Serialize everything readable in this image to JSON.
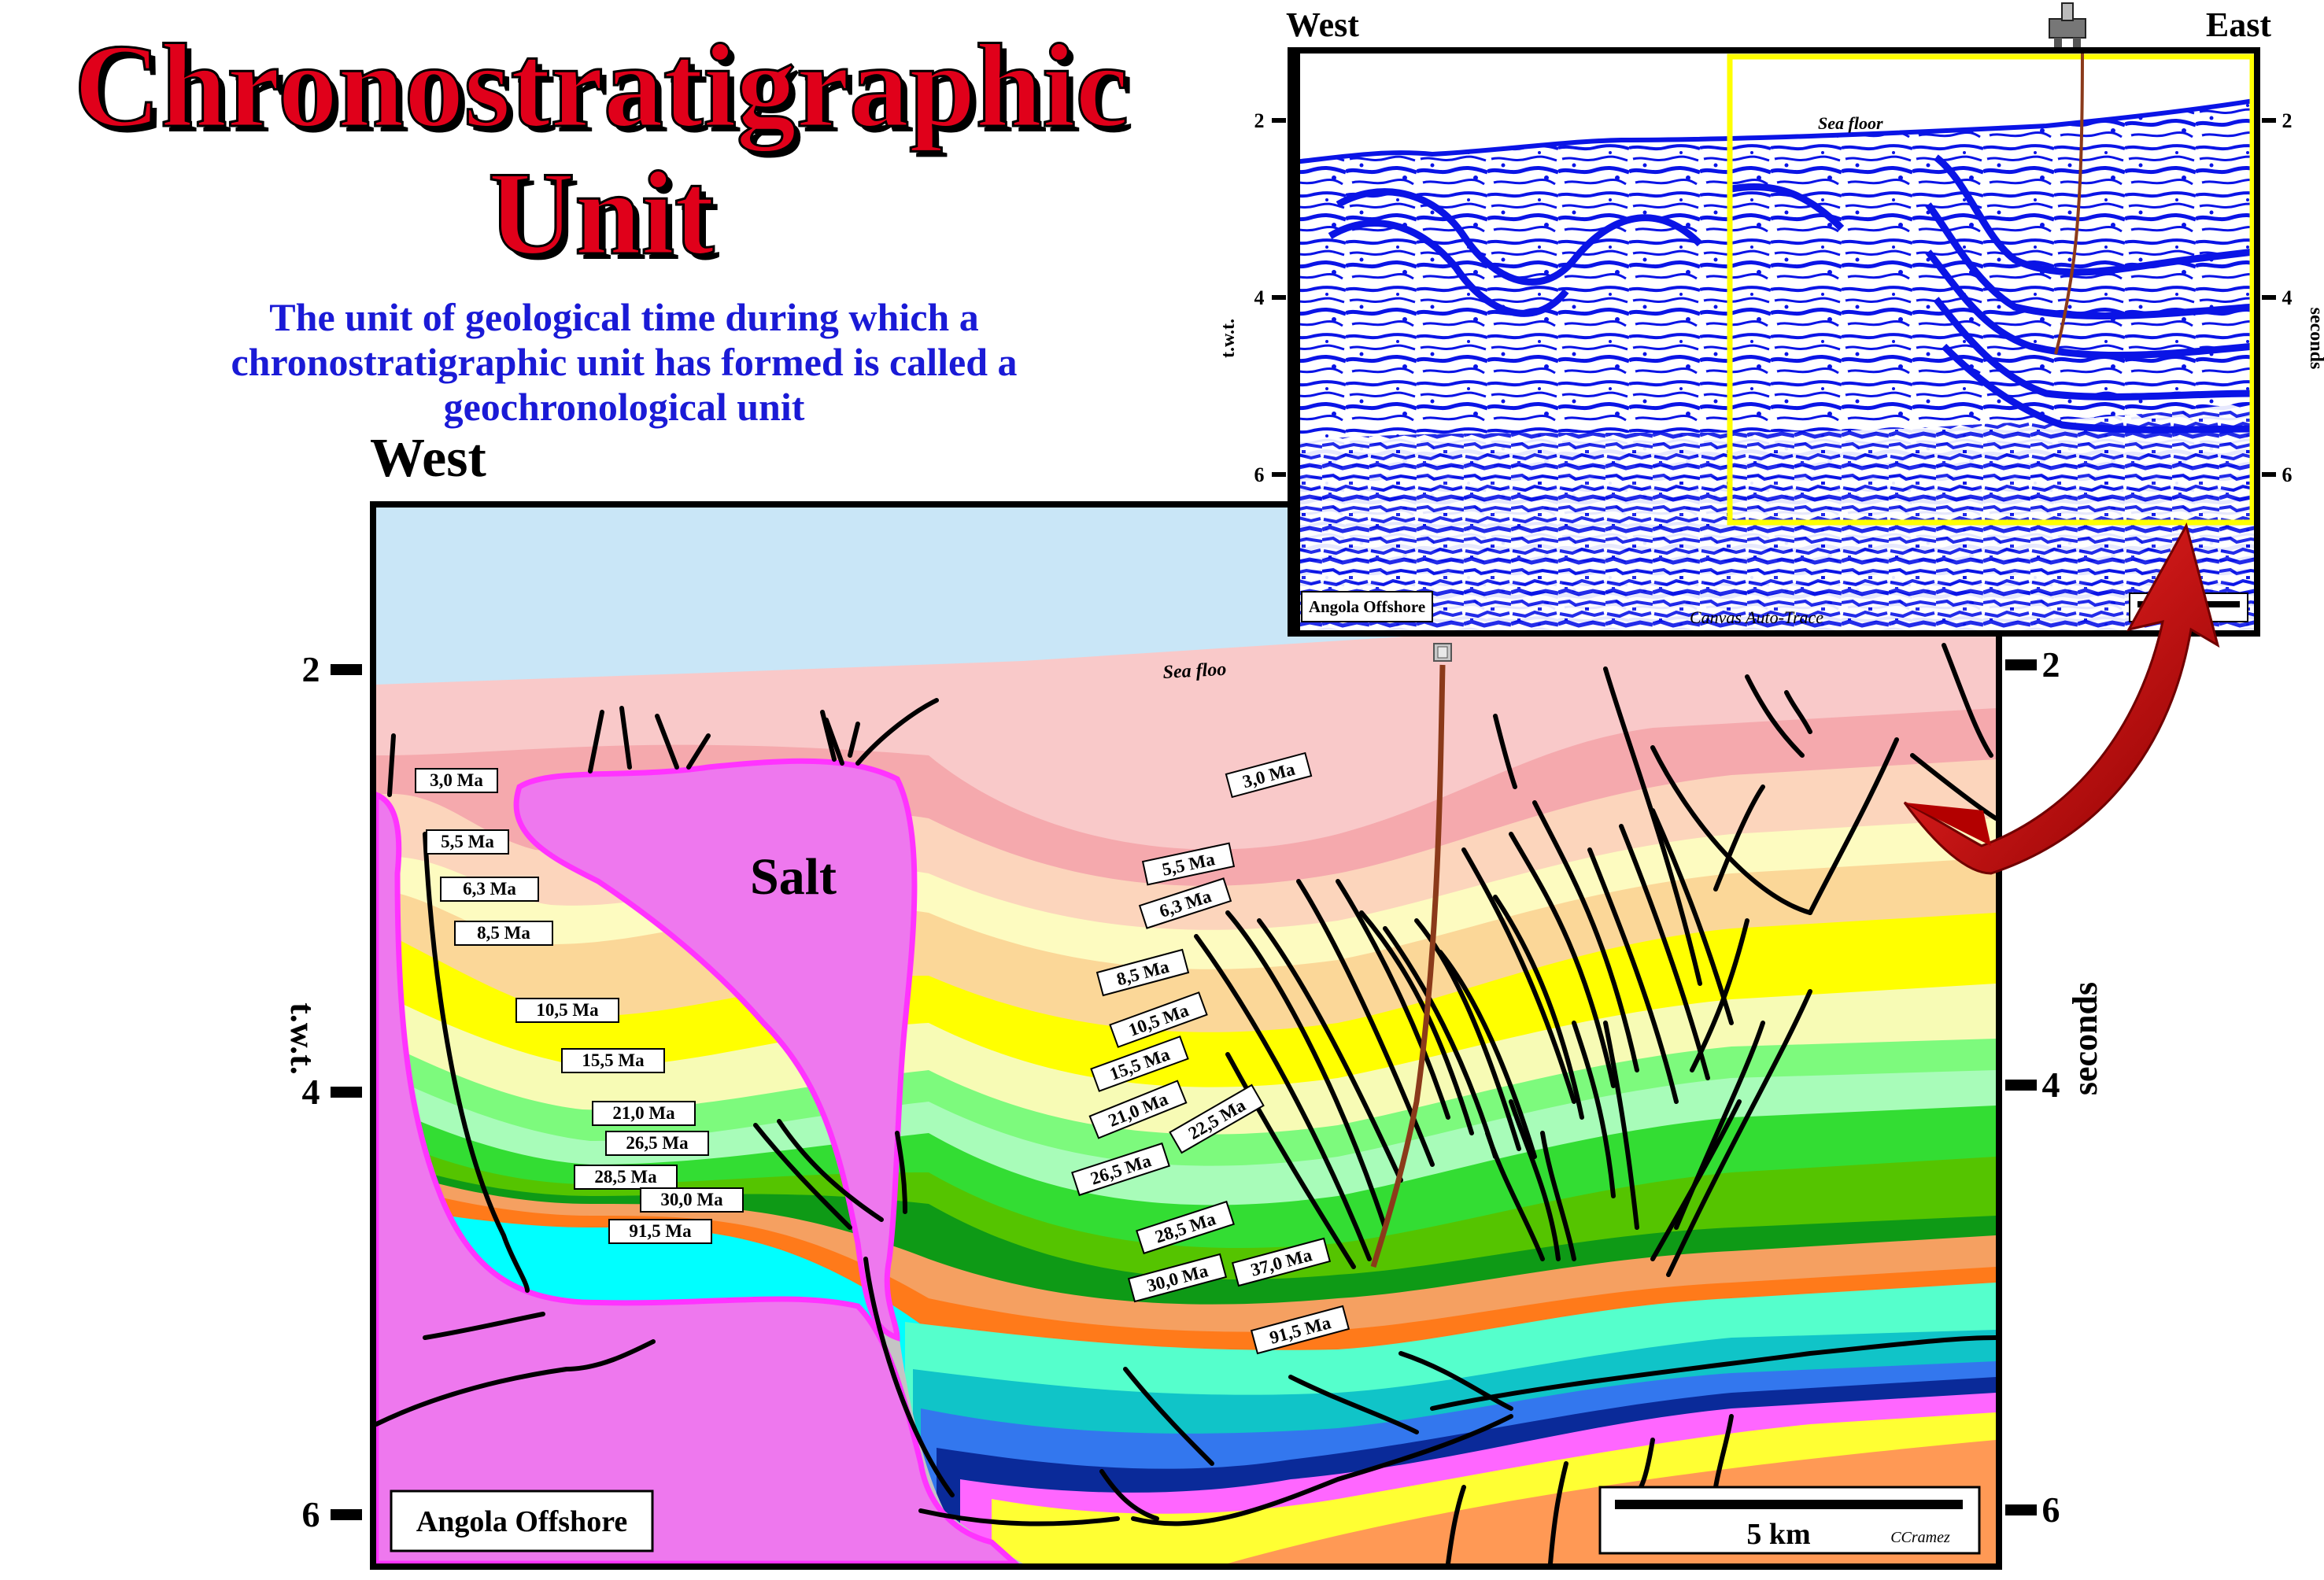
{
  "title": {
    "line1": "Chronostratigraphic",
    "line2": "Unit",
    "color": "#e0001a"
  },
  "subtitle": {
    "line1": "The unit of geological time during which a",
    "line2": "chronostratigraphic unit has formed is called a",
    "line3": "geochronological unit",
    "color": "#1a1ad6"
  },
  "main_section": {
    "west_label": "West",
    "left_axis_title": "t.w.t.",
    "right_axis_title": "seconds",
    "left_ticks": [
      "2",
      "4",
      "6"
    ],
    "right_ticks": [
      "2",
      "4",
      "6"
    ],
    "sea_floor_label": "Sea floo",
    "salt_label": "Salt",
    "location_label": "Angola Offshore",
    "scale_label": "5 km",
    "author_label": "CCramez",
    "west_ages": [
      "3,0 Ma",
      "5,5 Ma",
      "6,3 Ma",
      "8,5 Ma",
      "10,5 Ma",
      "15,5 Ma",
      "21,0 Ma",
      "26,5 Ma",
      "28,5 Ma",
      "30,0 Ma",
      "91,5 Ma"
    ],
    "east_ages": [
      "3,0 Ma",
      "5,5 Ma",
      "6,3 Ma",
      "8,5 Ma",
      "10,5 Ma",
      "15,5 Ma",
      "21,0 Ma",
      "22,5 Ma",
      "26,5 Ma",
      "28,5 Ma",
      "30,0 Ma",
      "37,0 Ma",
      "91,5 Ma"
    ],
    "colors": {
      "water": "#c9e6f7",
      "salt": "#ee78ee",
      "salt_outline": "#ff33ff",
      "basement": "#c4c4c4",
      "fault": "#000000",
      "well": "#8b3a1a"
    }
  },
  "inset_section": {
    "west_label": "West",
    "east_label": "East",
    "left_axis_title": "t.w.t.",
    "right_axis_title": "seconds",
    "left_ticks": [
      "2",
      "4",
      "6"
    ],
    "right_ticks": [
      "2",
      "4",
      "6"
    ],
    "sea_floor_label": "Sea floor",
    "location_label": "Angola Offshore",
    "trace_label": "Canvas Auto-Trace",
    "colors": {
      "reflector": "#0a14e6",
      "highlight_box": "#ffff00"
    }
  },
  "arrow": {
    "color": "#d40000"
  }
}
